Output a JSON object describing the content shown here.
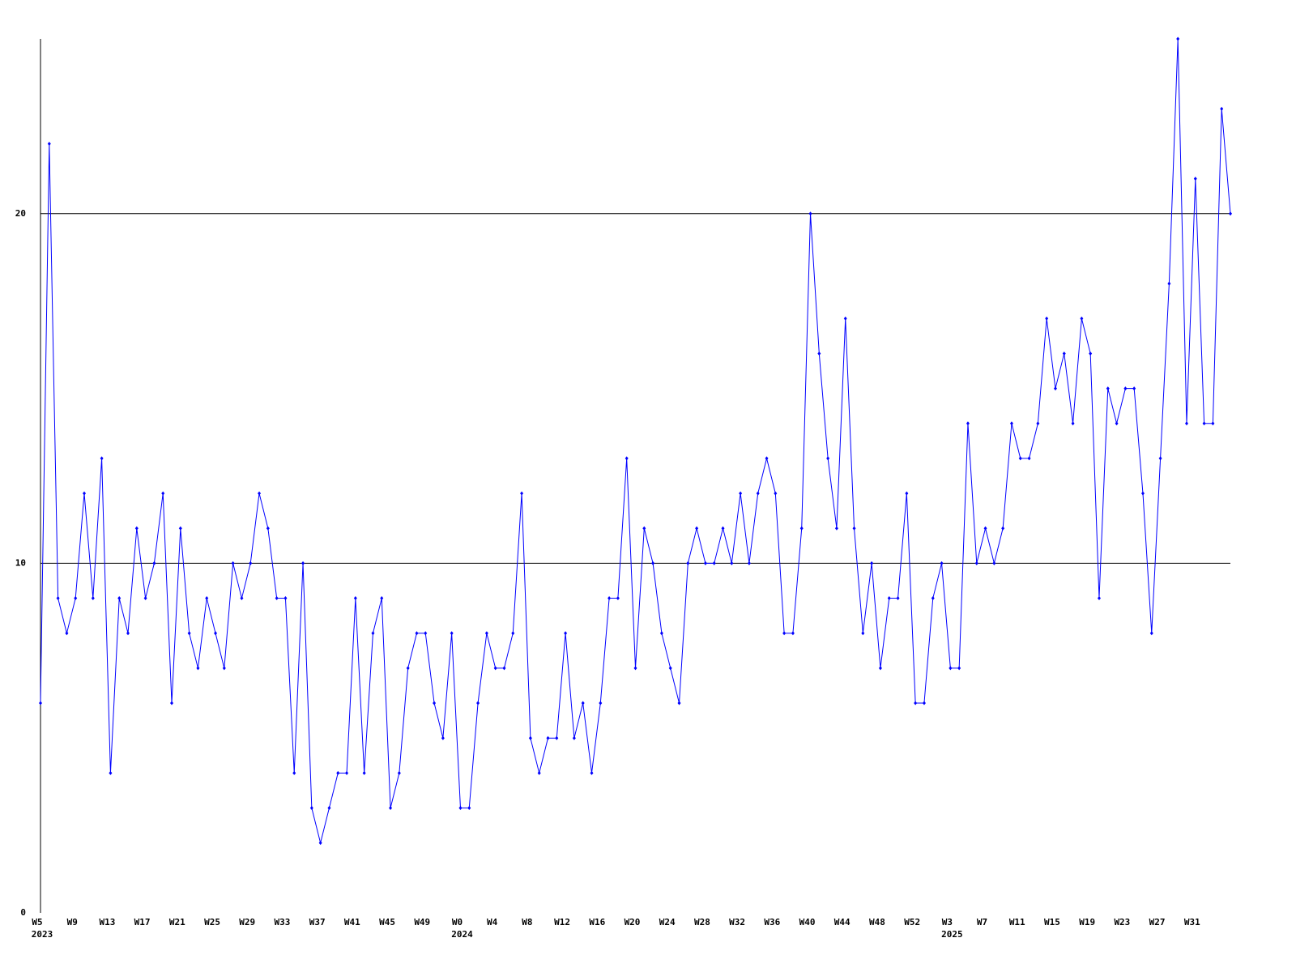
{
  "chart_data": {
    "type": "line",
    "categories": [
      "W5",
      null,
      null,
      null,
      "W9",
      null,
      null,
      null,
      "W13",
      null,
      null,
      null,
      "W17",
      null,
      null,
      null,
      "W21",
      null,
      null,
      null,
      "W25",
      null,
      null,
      null,
      "W29",
      null,
      null,
      null,
      "W33",
      null,
      null,
      null,
      "W37",
      null,
      null,
      null,
      "W41",
      null,
      null,
      null,
      "W45",
      null,
      null,
      null,
      "W49",
      null,
      null,
      null,
      "W0",
      null,
      null,
      null,
      "W4",
      null,
      null,
      null,
      "W8",
      null,
      null,
      null,
      "W12",
      null,
      null,
      null,
      "W16",
      null,
      null,
      null,
      "W20",
      null,
      null,
      null,
      "W24",
      null,
      null,
      null,
      "W28",
      null,
      null,
      null,
      "W32",
      null,
      null,
      null,
      "W36",
      null,
      null,
      null,
      "W40",
      null,
      null,
      null,
      "W44",
      null,
      null,
      null,
      "W48",
      null,
      null,
      null,
      "W52",
      null,
      null,
      null,
      "W3",
      null,
      null,
      null,
      "W7",
      null,
      null,
      null,
      "W11",
      null,
      null,
      null,
      "W15",
      null,
      null,
      null,
      "W19",
      null,
      null,
      null,
      "W23",
      null,
      null,
      null,
      "W27",
      null,
      null,
      null,
      "W31",
      null,
      null,
      null,
      null
    ],
    "year_labels": [
      "2023",
      null,
      null,
      null,
      null,
      null,
      null,
      null,
      null,
      null,
      null,
      null,
      null,
      null,
      null,
      null,
      null,
      null,
      null,
      null,
      null,
      null,
      null,
      null,
      null,
      null,
      null,
      null,
      null,
      null,
      null,
      null,
      null,
      null,
      null,
      null,
      null,
      null,
      null,
      null,
      null,
      null,
      null,
      null,
      null,
      null,
      null,
      null,
      "2024",
      null,
      null,
      null,
      null,
      null,
      null,
      null,
      null,
      null,
      null,
      null,
      null,
      null,
      null,
      null,
      null,
      null,
      null,
      null,
      null,
      null,
      null,
      null,
      null,
      null,
      null,
      null,
      null,
      null,
      null,
      null,
      null,
      null,
      null,
      null,
      null,
      null,
      null,
      null,
      null,
      null,
      null,
      null,
      null,
      null,
      null,
      null,
      null,
      null,
      null,
      null,
      null,
      null,
      null,
      null,
      "2025",
      null,
      null,
      null,
      null,
      null,
      null,
      null,
      null,
      null,
      null,
      null,
      null,
      null,
      null,
      null,
      null,
      null,
      null,
      null,
      null,
      null,
      null,
      null,
      null,
      null,
      null,
      null,
      null,
      null,
      null,
      null,
      null
    ],
    "series": [
      {
        "color": "#0000ff",
        "values": [
          6,
          22,
          9,
          8,
          9,
          12,
          9,
          13,
          4,
          9,
          8,
          11,
          9,
          10,
          12,
          6,
          11,
          8,
          7,
          9,
          8,
          7,
          10,
          9,
          10,
          12,
          11,
          9,
          9,
          4,
          10,
          3,
          2,
          3,
          4,
          4,
          9,
          4,
          8,
          9,
          3,
          4,
          7,
          8,
          8,
          6,
          5,
          8,
          3,
          3,
          6,
          8,
          7,
          7,
          8,
          12,
          5,
          4,
          5,
          5,
          8,
          5,
          6,
          4,
          6,
          9,
          9,
          13,
          7,
          11,
          10,
          8,
          7,
          6,
          10,
          11,
          10,
          10,
          11,
          10,
          12,
          10,
          12,
          13,
          12,
          8,
          8,
          11,
          20,
          16,
          13,
          11,
          17,
          11,
          8,
          10,
          7,
          9,
          9,
          12,
          6,
          6,
          9,
          10,
          7,
          7,
          14,
          10,
          11,
          10,
          11,
          14,
          13,
          13,
          14,
          17,
          15,
          16,
          14,
          17,
          16,
          9,
          15,
          14,
          15,
          15,
          12,
          8,
          13,
          18,
          25,
          14,
          21,
          14,
          14,
          23,
          20
        ]
      }
    ],
    "ylim": [
      0,
      25
    ],
    "yticks": [
      0,
      10,
      20
    ],
    "grid": true
  }
}
